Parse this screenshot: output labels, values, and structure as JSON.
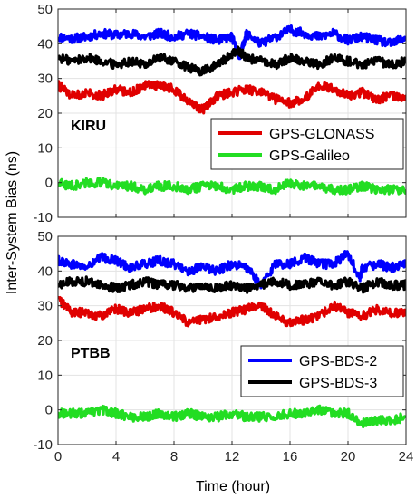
{
  "figure": {
    "ylabel": "Inter-System Bias (ns)",
    "xlabel": "Time (hour)"
  },
  "chart_data": [
    {
      "type": "line",
      "station": "KIRU",
      "xlim": [
        0,
        24
      ],
      "ylim": [
        -10,
        50
      ],
      "xticks": [
        0,
        4,
        8,
        12,
        16,
        20,
        24
      ],
      "yticks": [
        -10,
        0,
        10,
        20,
        30,
        40,
        50
      ],
      "grid": true,
      "legend_position": "middle-right",
      "xlabel": "",
      "ylabel": "Inter-System Bias (ns)",
      "series": [
        {
          "name": "",
          "color": "#0000ff",
          "x": [
            0,
            1,
            2,
            3,
            4,
            5,
            6,
            7,
            8,
            9,
            10,
            11,
            12,
            12.5,
            13,
            14,
            15,
            16,
            17,
            18,
            19,
            20,
            21,
            22,
            23,
            24
          ],
          "y": [
            42,
            41.5,
            42,
            43,
            42.5,
            43,
            42,
            43,
            42,
            43,
            42,
            41,
            42,
            36,
            43,
            40,
            42,
            44,
            43,
            42,
            43,
            41,
            42,
            41,
            40,
            42
          ]
        },
        {
          "name": "",
          "color": "#000000",
          "x": [
            0,
            1,
            2,
            3,
            4,
            5,
            6,
            7,
            8,
            9,
            10,
            11,
            12,
            12.5,
            13,
            14,
            15,
            16,
            17,
            18,
            19,
            20,
            21,
            22,
            23,
            24
          ],
          "y": [
            36,
            35,
            36,
            35,
            34,
            35,
            34,
            36,
            35,
            33,
            32,
            34,
            37,
            38,
            36,
            35,
            34,
            36,
            35,
            34,
            36,
            35,
            34,
            35,
            34,
            35
          ]
        },
        {
          "name": "GPS-GLONASS",
          "color": "#e00000",
          "x": [
            0,
            1,
            2,
            3,
            4,
            5,
            6,
            7,
            8,
            9,
            10,
            11,
            12,
            13,
            14,
            15,
            16,
            17,
            18,
            19,
            20,
            21,
            22,
            23,
            24
          ],
          "y": [
            28,
            25,
            26,
            25,
            27,
            26,
            28,
            28,
            27,
            23,
            21,
            25,
            26,
            27,
            26,
            24,
            23,
            24,
            28,
            27,
            25,
            26,
            24,
            25,
            24
          ]
        },
        {
          "name": "GPS-Galileo",
          "color": "#22dd22",
          "x": [
            0,
            1,
            2,
            3,
            4,
            5,
            6,
            7,
            8,
            9,
            10,
            11,
            12,
            13,
            14,
            15,
            16,
            17,
            18,
            19,
            20,
            21,
            22,
            23,
            24
          ],
          "y": [
            0,
            -1,
            0,
            0,
            -1,
            -1,
            -2,
            -1,
            -1,
            -2,
            -1,
            -1,
            -2,
            -1,
            -1,
            -2,
            0,
            -1,
            -1,
            -2,
            -2,
            -1,
            -2,
            -2,
            -2
          ]
        }
      ]
    },
    {
      "type": "line",
      "station": "PTBB",
      "xlim": [
        0,
        24
      ],
      "ylim": [
        -10,
        50
      ],
      "xticks": [
        0,
        4,
        8,
        12,
        16,
        20,
        24
      ],
      "yticks": [
        -10,
        0,
        10,
        20,
        30,
        40,
        50
      ],
      "grid": true,
      "legend_position": "middle-right",
      "xlabel": "Time (hour)",
      "ylabel": "Inter-System Bias (ns)",
      "series": [
        {
          "name": "GPS-BDS-2",
          "color": "#0000ff",
          "x": [
            0,
            1,
            2,
            3,
            4,
            5,
            6,
            7,
            8,
            9,
            10,
            11,
            12,
            13,
            14,
            15,
            16,
            17,
            18,
            19,
            20,
            20.8,
            21,
            22,
            23,
            24
          ],
          "y": [
            43,
            42,
            41,
            44,
            43,
            41,
            42,
            43,
            42,
            40,
            41,
            40,
            42,
            41,
            36,
            42,
            42,
            44,
            42,
            42,
            45,
            38,
            41,
            42,
            41,
            42
          ]
        },
        {
          "name": "GPS-BDS-3",
          "color": "#000000",
          "x": [
            0,
            1,
            2,
            3,
            4,
            5,
            6,
            7,
            8,
            9,
            10,
            11,
            12,
            13,
            14,
            15,
            16,
            17,
            18,
            19,
            20,
            21,
            22,
            23,
            24
          ],
          "y": [
            36,
            37,
            37,
            36,
            35,
            36,
            37,
            36,
            36,
            35,
            36,
            35,
            36,
            35,
            36,
            37,
            36,
            36,
            37,
            36,
            37,
            35,
            37,
            36,
            36
          ]
        },
        {
          "name": "",
          "color": "#e00000",
          "x": [
            0,
            1,
            2,
            3,
            4,
            5,
            6,
            7,
            8,
            9,
            10,
            11,
            12,
            13,
            14,
            15,
            16,
            17,
            18,
            19,
            20,
            21,
            22,
            23,
            24
          ],
          "y": [
            32,
            28,
            28,
            27,
            29,
            28,
            29,
            30,
            28,
            25,
            26,
            27,
            28,
            29,
            30,
            27,
            25,
            26,
            27,
            30,
            28,
            27,
            29,
            28,
            28
          ]
        },
        {
          "name": "",
          "color": "#22dd22",
          "x": [
            0,
            1,
            2,
            3,
            4,
            5,
            6,
            7,
            8,
            9,
            10,
            11,
            12,
            13,
            14,
            15,
            16,
            17,
            18,
            19,
            20,
            21,
            22,
            23,
            24
          ],
          "y": [
            -1,
            -1,
            -1,
            0,
            -1,
            -2,
            -2,
            -1,
            -2,
            -1,
            -2,
            -2,
            -1,
            -2,
            -2,
            -2,
            -1,
            -1,
            0,
            -1,
            -1,
            -4,
            -3,
            -3,
            -2
          ]
        }
      ]
    }
  ]
}
